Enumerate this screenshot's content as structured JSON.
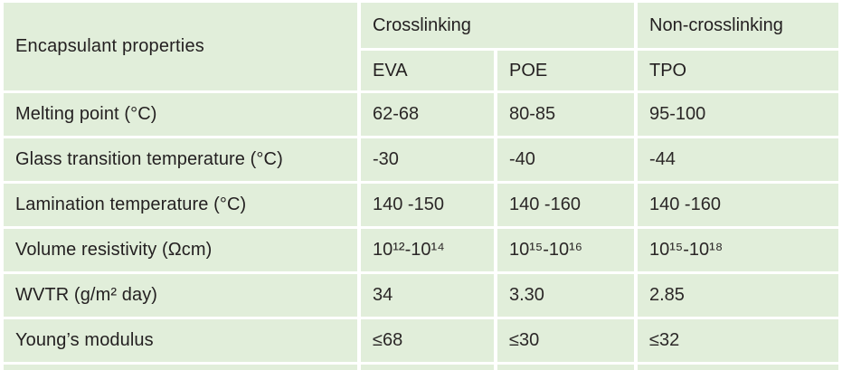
{
  "table": {
    "corner_header": "Encapsulant properties",
    "group_headers": [
      {
        "label": "Crosslinking",
        "colspan": 2
      },
      {
        "label": "Non-crosslinking",
        "colspan": 1
      }
    ],
    "column_headers": [
      "EVA",
      "POE",
      "TPO"
    ],
    "rows": [
      {
        "label": "Melting point (°C)",
        "values": [
          "62-68",
          "80-85",
          "95-100"
        ]
      },
      {
        "label": "Glass transition temperature (°C)",
        "values": [
          "-30",
          "-40",
          "-44"
        ]
      },
      {
        "label": "Lamination temperature (°C)",
        "values": [
          "140 -150",
          "140 -160",
          "140 -160"
        ]
      },
      {
        "label": "Volume resistivity (Ωcm)",
        "values": [
          "10¹²-10¹⁴",
          "10¹⁵-10¹⁶",
          "10¹⁵-10¹⁸"
        ]
      },
      {
        "label": "WVTR (g/m² day)",
        "values": [
          "34",
          "3.30",
          "2.85"
        ]
      },
      {
        "label": "Young’s modulus",
        "values": [
          "≤68",
          "≤30",
          "≤32"
        ]
      }
    ],
    "colors": {
      "cell_background": "#e1eeda",
      "grid_lines": "#ffffff",
      "text": "#231f20"
    }
  },
  "chart_data": {
    "type": "table",
    "title": "Encapsulant properties",
    "column_groups": [
      "Crosslinking",
      "Crosslinking",
      "Non-crosslinking"
    ],
    "columns": [
      "EVA",
      "POE",
      "TPO"
    ],
    "row_labels": [
      "Melting point (°C)",
      "Glass transition temperature (°C)",
      "Lamination temperature (°C)",
      "Volume resistivity (Ωcm)",
      "WVTR (g/m² day)",
      "Young’s modulus"
    ],
    "cells": [
      [
        "62-68",
        "80-85",
        "95-100"
      ],
      [
        "-30",
        "-40",
        "-44"
      ],
      [
        "140 -150",
        "140 -160",
        "140 -160"
      ],
      [
        "10¹²-10¹⁴",
        "10¹⁵-10¹⁶",
        "10¹⁵-10¹⁸"
      ],
      [
        "34",
        "3.30",
        "2.85"
      ],
      [
        "≤68",
        "≤30",
        "≤32"
      ]
    ]
  }
}
